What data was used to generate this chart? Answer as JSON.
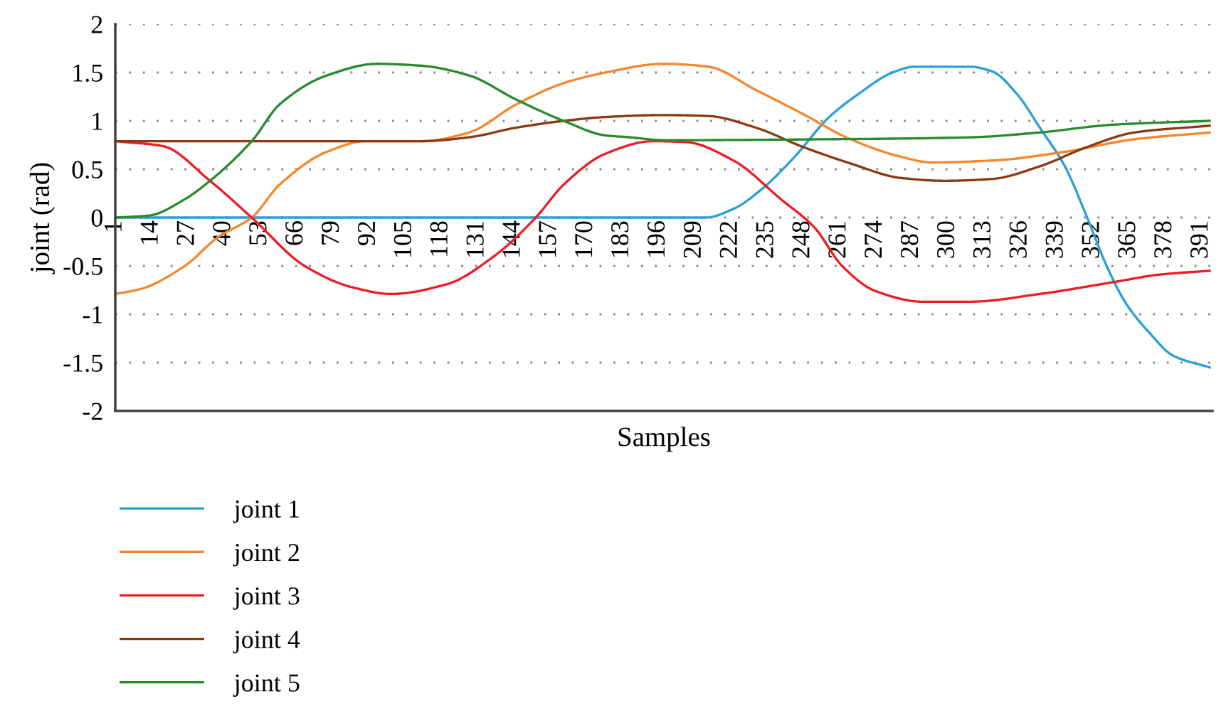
{
  "chart_data": {
    "type": "line",
    "xlabel": "Samples",
    "ylabel": "joint (rad)",
    "xlim": [
      1,
      395
    ],
    "xticks": [
      1,
      14,
      27,
      40,
      53,
      66,
      79,
      92,
      105,
      118,
      131,
      144,
      157,
      170,
      183,
      196,
      209,
      222,
      235,
      248,
      261,
      274,
      287,
      300,
      313,
      326,
      339,
      352,
      365,
      378,
      391
    ],
    "ylim": [
      -2,
      2
    ],
    "yticks": [
      -2,
      -1.5,
      -1,
      -0.5,
      0,
      0.5,
      1,
      1.5,
      2
    ],
    "grid": "y",
    "legend": "bottom",
    "line_style": "solid",
    "marker": "none",
    "series": [
      {
        "name": "joint 1",
        "color": "#2a9fd8",
        "x": [
          1,
          100,
          213,
          223,
          233,
          245,
          257,
          267,
          281,
          288,
          308,
          316,
          325,
          333,
          342,
          350,
          357,
          364,
          372,
          381,
          394
        ],
        "values": [
          0,
          0,
          0,
          0.09,
          0.29,
          0.63,
          1.03,
          1.26,
          1.51,
          1.56,
          1.56,
          1.51,
          1.27,
          0.93,
          0.53,
          0,
          -0.5,
          -0.89,
          -1.18,
          -1.43,
          -1.55
        ]
      },
      {
        "name": "joint 2",
        "color": "#f7862e",
        "x": [
          1,
          10,
          26,
          38,
          50,
          60,
          77,
          91,
          111,
          128,
          145,
          162,
          177,
          198,
          214,
          231,
          248,
          265,
          283,
          294,
          316,
          342,
          367,
          394
        ],
        "values": [
          -0.79,
          -0.74,
          -0.5,
          -0.2,
          0,
          0.34,
          0.68,
          0.79,
          0.79,
          0.88,
          1.17,
          1.39,
          1.5,
          1.59,
          1.56,
          1.32,
          1.07,
          0.81,
          0.63,
          0.57,
          0.59,
          0.68,
          0.81,
          0.88
        ]
      },
      {
        "name": "joint 3",
        "color": "#ee1c25",
        "x": [
          1,
          18,
          35,
          50,
          69,
          86,
          100,
          120,
          137,
          152,
          162,
          177,
          194,
          206,
          223,
          240,
          252,
          262,
          274,
          291,
          308,
          333,
          359,
          376,
          394
        ],
        "values": [
          0.79,
          0.74,
          0.38,
          0,
          -0.5,
          -0.72,
          -0.79,
          -0.69,
          -0.4,
          0,
          0.34,
          0.66,
          0.79,
          0.78,
          0.59,
          0.19,
          -0.1,
          -0.5,
          -0.76,
          -0.87,
          -0.87,
          -0.79,
          -0.67,
          -0.59,
          -0.55
        ]
      },
      {
        "name": "joint 4",
        "color": "#8b3a0f",
        "x": [
          1,
          111,
          128,
          145,
          162,
          177,
          198,
          214,
          231,
          248,
          265,
          283,
          299,
          316,
          333,
          350,
          367,
          394
        ],
        "values": [
          0.79,
          0.79,
          0.83,
          0.93,
          1.0,
          1.04,
          1.06,
          1.05,
          0.93,
          0.73,
          0.56,
          0.41,
          0.38,
          0.4,
          0.53,
          0.73,
          0.88,
          0.95
        ]
      },
      {
        "name": "joint 5",
        "color": "#2a8a2e",
        "x": [
          1,
          13,
          26,
          35,
          50,
          60,
          77,
          95,
          111,
          128,
          145,
          162,
          177,
          186,
          198,
          257,
          308,
          333,
          359,
          394
        ],
        "values": [
          0,
          0.02,
          0.19,
          0.38,
          0.79,
          1.17,
          1.47,
          1.59,
          1.57,
          1.47,
          1.22,
          1.0,
          0.85,
          0.83,
          0.8,
          0.81,
          0.83,
          0.88,
          0.96,
          1.0
        ]
      }
    ]
  }
}
